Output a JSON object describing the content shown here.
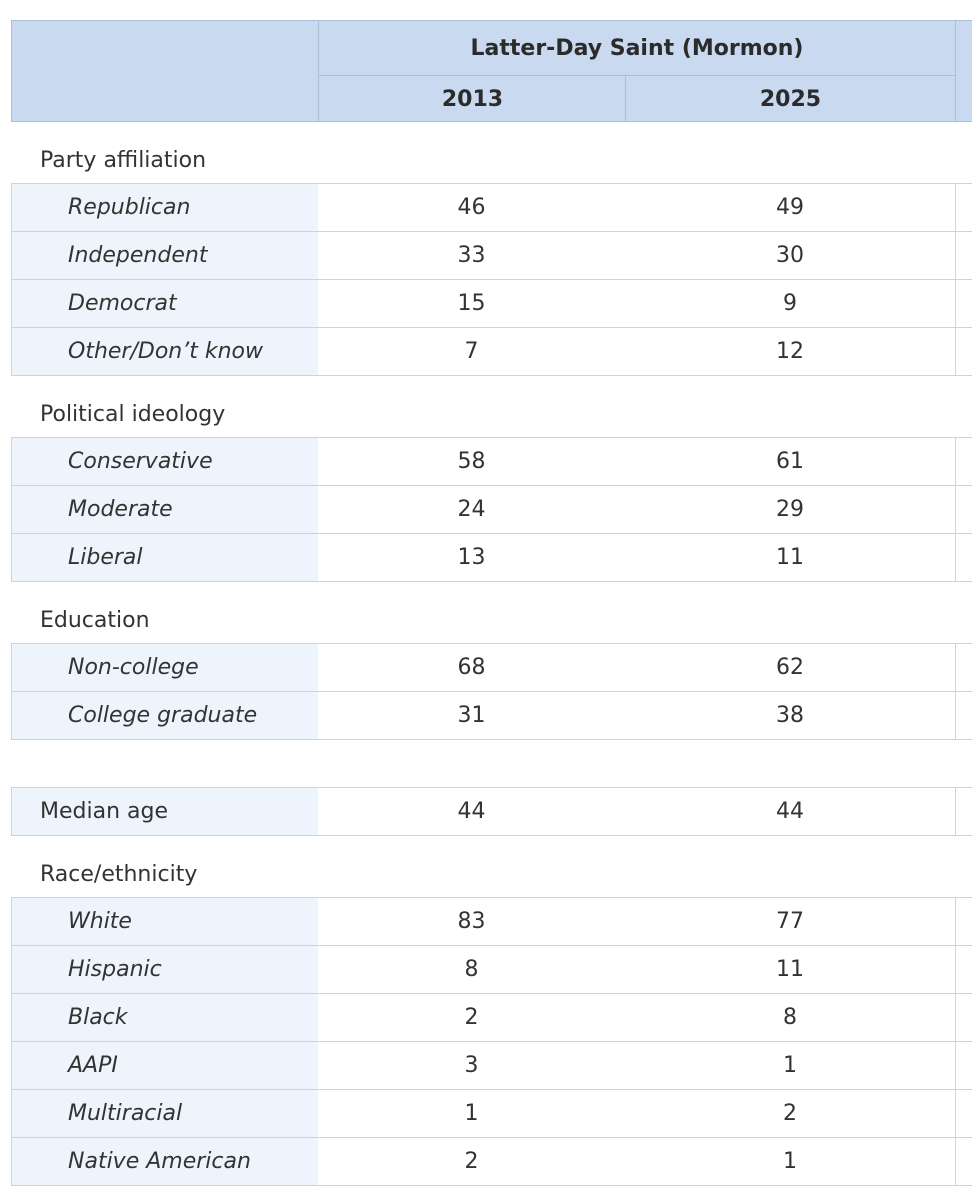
{
  "header": {
    "group": "Latter-Day Saint (Mormon)",
    "years": [
      "2013",
      "2025"
    ]
  },
  "sections": [
    {
      "title": "Party affiliation",
      "rows": [
        {
          "label": "Republican",
          "values": [
            46,
            49
          ]
        },
        {
          "label": "Independent",
          "values": [
            33,
            30
          ]
        },
        {
          "label": "Democrat",
          "values": [
            15,
            9
          ]
        },
        {
          "label": "Other/Don’t know",
          "values": [
            7,
            12
          ]
        }
      ]
    },
    {
      "title": "Political ideology",
      "rows": [
        {
          "label": "Conservative",
          "values": [
            58,
            61
          ]
        },
        {
          "label": "Moderate",
          "values": [
            24,
            29
          ]
        },
        {
          "label": "Liberal",
          "values": [
            13,
            11
          ]
        }
      ]
    },
    {
      "title": "Education",
      "rows": [
        {
          "label": "Non-college",
          "values": [
            68,
            62
          ]
        },
        {
          "label": "College graduate",
          "values": [
            31,
            38
          ]
        }
      ]
    },
    {
      "rows": [
        {
          "label": "Median age",
          "values": [
            44,
            44
          ]
        }
      ]
    },
    {
      "title": "Race/ethnicity",
      "rows": [
        {
          "label": "White",
          "values": [
            83,
            77
          ]
        },
        {
          "label": "Hispanic",
          "values": [
            8,
            11
          ]
        },
        {
          "label": "Black",
          "values": [
            2,
            8
          ]
        },
        {
          "label": "AAPI",
          "values": [
            3,
            1
          ]
        },
        {
          "label": "Multiracial",
          "values": [
            1,
            2
          ]
        },
        {
          "label": "Native American",
          "values": [
            2,
            1
          ]
        }
      ]
    }
  ]
}
